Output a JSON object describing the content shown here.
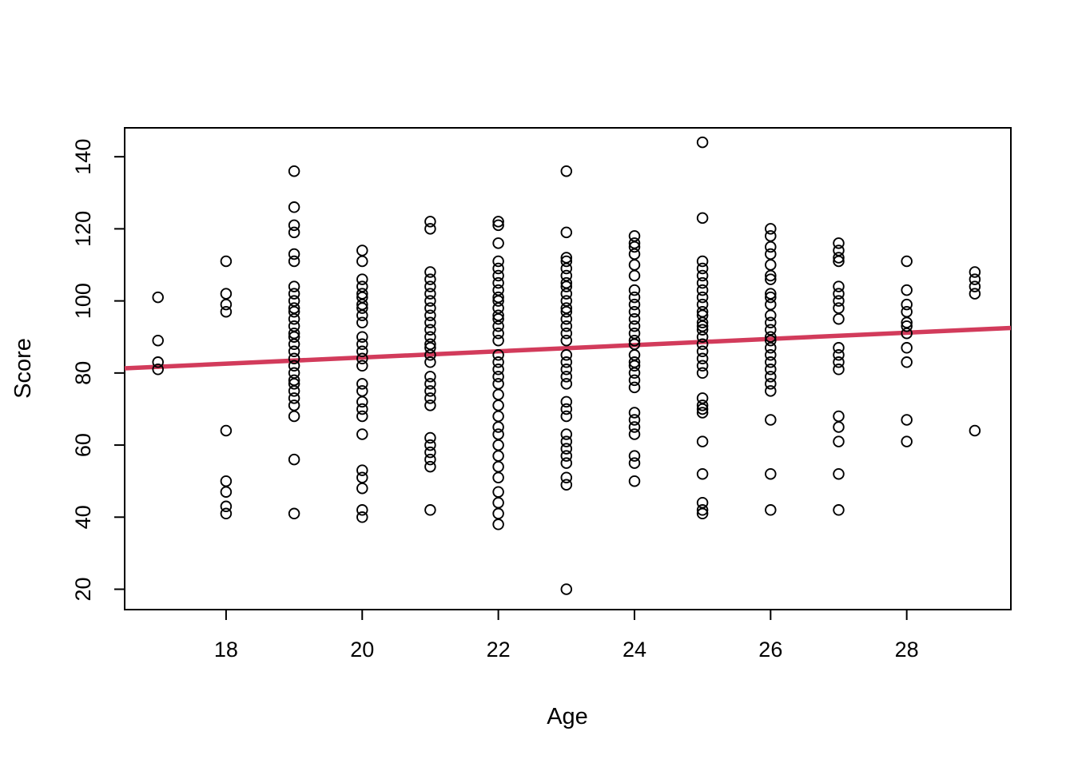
{
  "chart_data": {
    "type": "scatter",
    "title": "",
    "xlabel": "Age",
    "ylabel": "Score",
    "x_ticks": [
      18,
      20,
      22,
      24,
      26,
      28
    ],
    "y_ticks": [
      20,
      40,
      60,
      80,
      100,
      120,
      140
    ],
    "xlim": [
      16.51,
      29.53
    ],
    "ylim": [
      14.35,
      148.02
    ],
    "grid": false,
    "legend": "none",
    "marker": "open-circle",
    "point_color": "#000000",
    "axis_color": "#000000",
    "points_by_age": [
      {
        "age": 17,
        "scores": [
          101,
          89,
          83,
          81
        ]
      },
      {
        "age": 18,
        "scores": [
          111,
          102,
          99,
          97,
          64,
          50,
          47,
          43,
          41
        ]
      },
      {
        "age": 19,
        "scores": [
          136,
          126,
          121,
          119,
          113,
          111,
          104,
          102,
          100,
          98,
          97,
          95,
          93,
          91,
          90,
          88,
          86,
          84,
          82,
          80,
          78,
          77,
          75,
          73,
          71,
          68,
          56,
          41
        ]
      },
      {
        "age": 20,
        "scores": [
          114,
          111,
          106,
          104,
          102,
          101,
          99,
          98,
          96,
          94,
          90,
          88,
          86,
          84,
          82,
          77,
          75,
          72,
          70,
          68,
          63,
          53,
          51,
          48,
          42,
          40
        ]
      },
      {
        "age": 21,
        "scores": [
          122,
          120,
          108,
          106,
          104,
          102,
          100,
          98,
          96,
          94,
          92,
          90,
          88,
          87,
          85,
          83,
          79,
          77,
          75,
          73,
          71,
          62,
          60,
          58,
          56,
          54,
          42
        ]
      },
      {
        "age": 22,
        "scores": [
          122,
          121,
          116,
          111,
          109,
          107,
          105,
          103,
          101,
          100,
          98,
          96,
          95,
          93,
          91,
          89,
          85,
          83,
          81,
          79,
          77,
          74,
          71,
          68,
          65,
          63,
          60,
          57,
          54,
          51,
          47,
          44,
          41,
          38
        ]
      },
      {
        "age": 23,
        "scores": [
          136,
          119,
          112,
          111,
          109,
          107,
          105,
          104,
          102,
          100,
          98,
          97,
          95,
          93,
          91,
          89,
          85,
          83,
          81,
          79,
          77,
          72,
          70,
          68,
          63,
          61,
          59,
          57,
          55,
          51,
          49,
          20
        ]
      },
      {
        "age": 24,
        "scores": [
          118,
          116,
          115,
          113,
          110,
          107,
          103,
          101,
          99,
          97,
          95,
          93,
          91,
          89,
          88,
          85,
          83,
          82,
          80,
          78,
          76,
          69,
          67,
          65,
          63,
          57,
          55,
          50
        ]
      },
      {
        "age": 25,
        "scores": [
          144,
          123,
          111,
          109,
          107,
          105,
          103,
          101,
          99,
          97,
          96,
          94,
          93,
          92,
          90,
          88,
          86,
          84,
          82,
          80,
          73,
          71,
          70,
          69,
          61,
          52,
          44,
          42,
          41
        ]
      },
      {
        "age": 26,
        "scores": [
          120,
          118,
          115,
          113,
          110,
          107,
          106,
          102,
          101,
          99,
          96,
          94,
          92,
          90,
          89,
          87,
          85,
          83,
          81,
          79,
          77,
          75,
          67,
          52,
          42
        ]
      },
      {
        "age": 27,
        "scores": [
          116,
          114,
          112,
          111,
          104,
          102,
          100,
          98,
          95,
          87,
          85,
          83,
          81,
          68,
          65,
          61,
          52,
          42
        ]
      },
      {
        "age": 28,
        "scores": [
          111,
          103,
          99,
          97,
          94,
          93,
          91,
          87,
          83,
          67,
          61
        ]
      },
      {
        "age": 29,
        "scores": [
          108,
          106,
          104,
          102,
          64
        ]
      }
    ],
    "regression_line": {
      "color": "#D23B5B",
      "x0": 16.51,
      "y0": 81.3,
      "x1": 29.53,
      "y1": 92.5
    }
  }
}
